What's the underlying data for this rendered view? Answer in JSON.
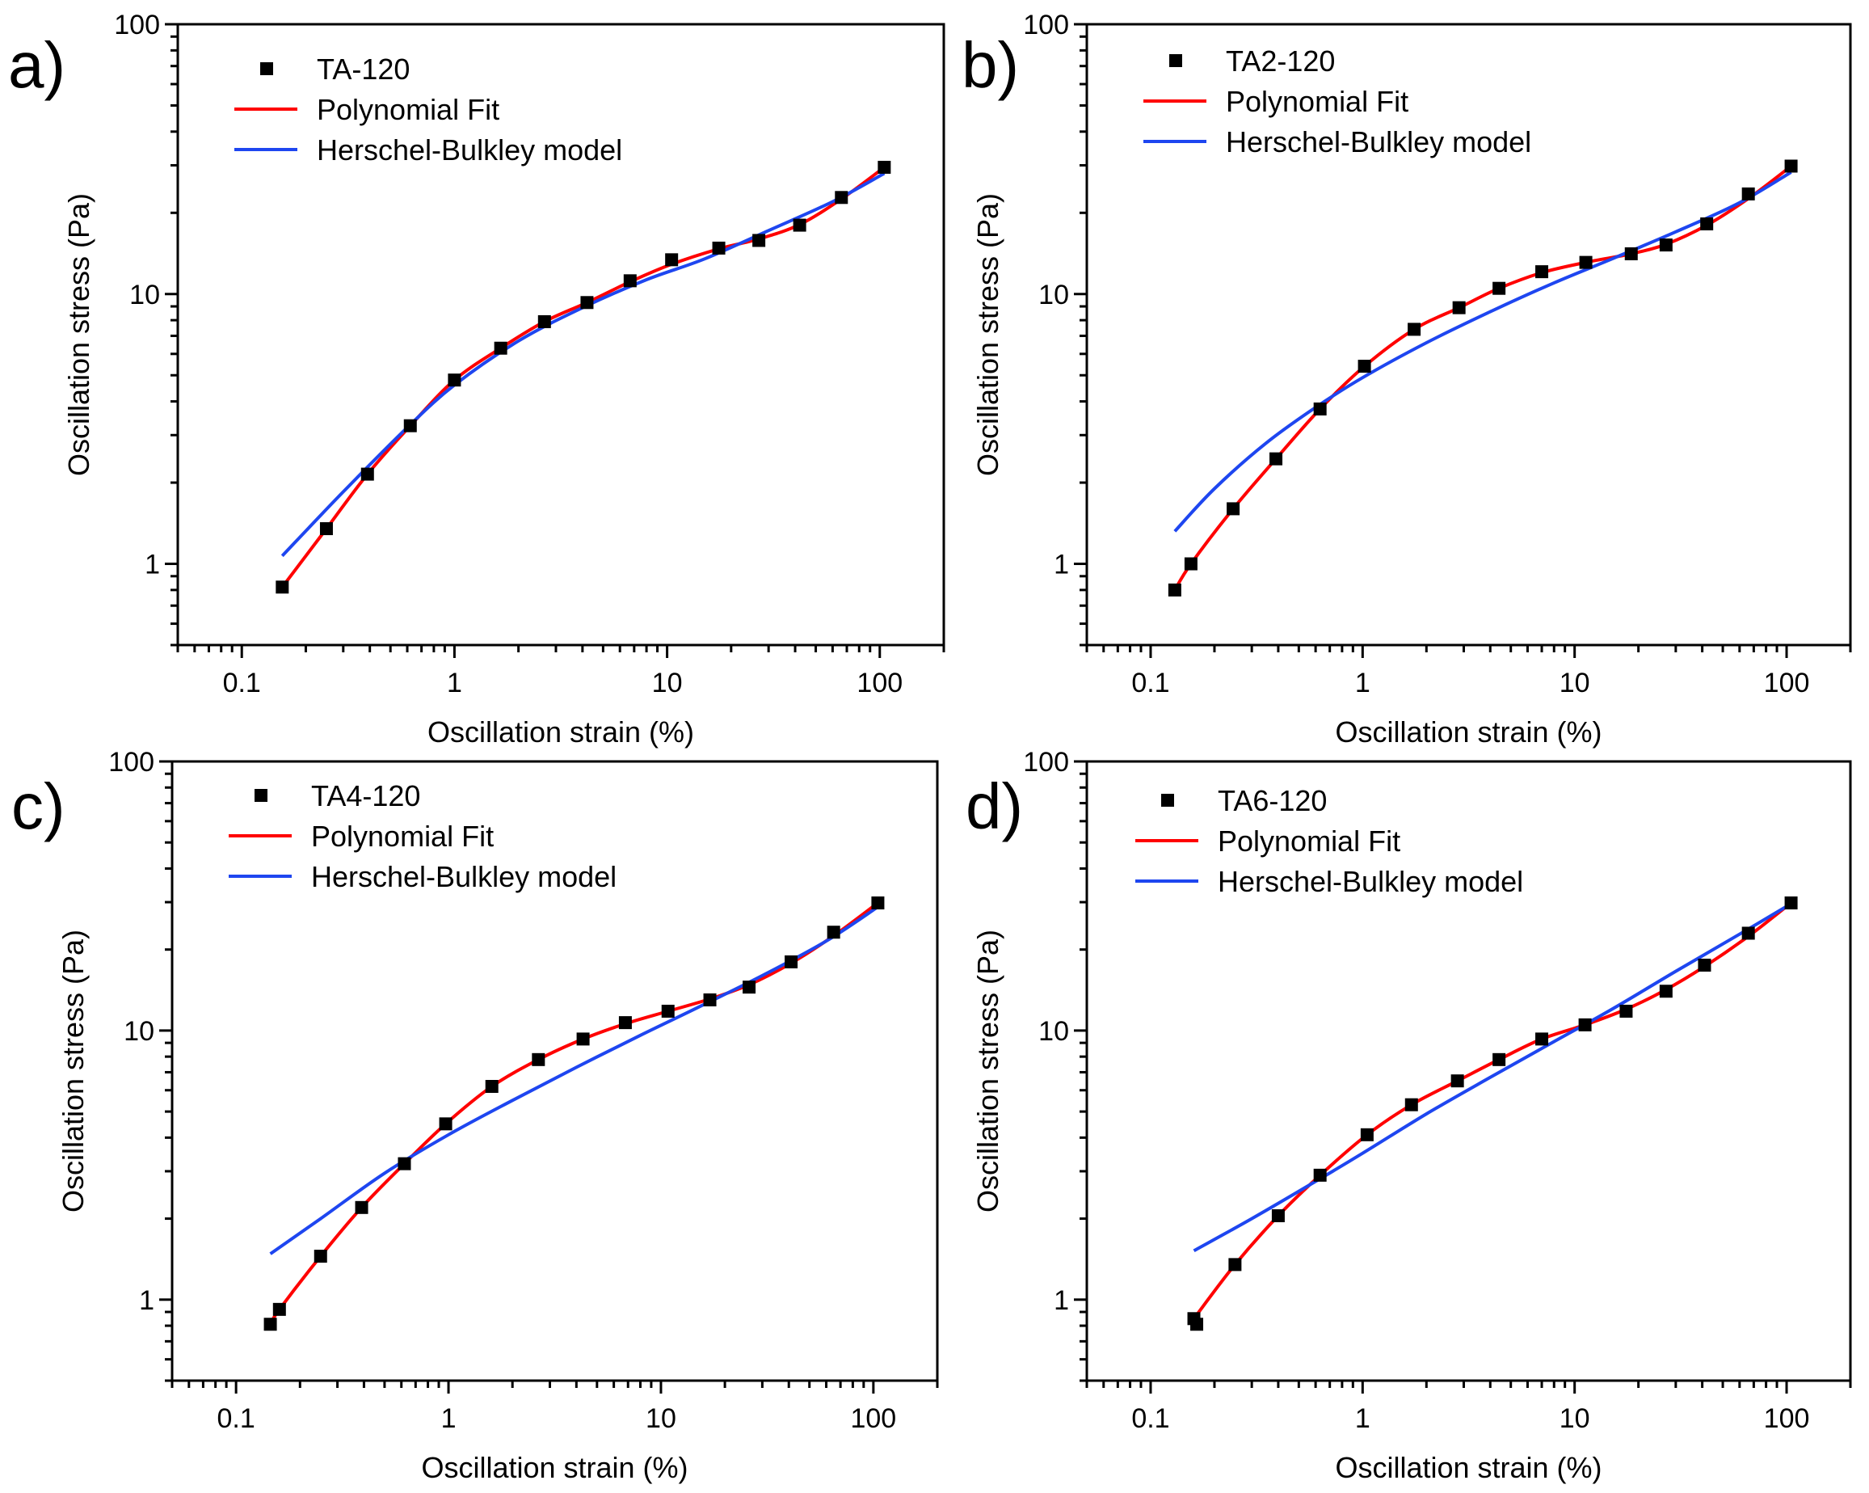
{
  "figure": {
    "xlabel": "Oscillation strain (%)",
    "ylabel": "Oscillation stress (Pa)"
  },
  "chart_data": [
    {
      "panel": "a)",
      "type": "scatter",
      "xscale": "log",
      "yscale": "log",
      "xlim": [
        0.05,
        200
      ],
      "ylim": [
        0.5,
        100
      ],
      "xticks": [
        "0.1",
        "1",
        "10",
        "100"
      ],
      "yticks": [
        "1",
        "10",
        "100"
      ],
      "xlabel": "Oscillation strain (%)",
      "ylabel": "Oscillation stress (Pa)",
      "legend_position": "top-left",
      "series": [
        {
          "name": "TA-120",
          "kind": "markers",
          "color": "#000000",
          "x": [
            0.155,
            0.25,
            0.39,
            0.62,
            1.0,
            1.65,
            2.65,
            4.2,
            6.7,
            10.5,
            17.5,
            27,
            42,
            66,
            105
          ],
          "y": [
            0.82,
            1.35,
            2.15,
            3.25,
            4.8,
            6.3,
            7.9,
            9.3,
            11.2,
            13.4,
            14.8,
            15.8,
            18.0,
            22.8,
            29.5
          ]
        },
        {
          "name": "Polynomial Fit",
          "kind": "line",
          "color": "#ff0000",
          "x": [
            0.155,
            0.25,
            0.39,
            0.62,
            1.0,
            1.65,
            2.65,
            4.2,
            6.7,
            10.5,
            17.5,
            27,
            42,
            66,
            105
          ],
          "y": [
            0.82,
            1.35,
            2.15,
            3.25,
            4.8,
            6.3,
            7.9,
            9.3,
            11.1,
            12.9,
            14.7,
            16.0,
            18.1,
            22.5,
            29.5
          ]
        },
        {
          "name": "Herschel-Bulkley model",
          "kind": "line",
          "color": "#1e46f0",
          "x": [
            0.155,
            0.3,
            0.6,
            1.0,
            2,
            4,
            8,
            15,
            30,
            60,
            105
          ],
          "y": [
            1.07,
            1.85,
            3.2,
            4.6,
            6.7,
            8.9,
            11.3,
            13.5,
            17.2,
            22.0,
            28.0
          ]
        }
      ]
    },
    {
      "panel": "b)",
      "type": "scatter",
      "xscale": "log",
      "yscale": "log",
      "xlim": [
        0.05,
        200
      ],
      "ylim": [
        0.5,
        100
      ],
      "xticks": [
        "0.1",
        "1",
        "10",
        "100"
      ],
      "yticks": [
        "1",
        "10",
        "100"
      ],
      "xlabel": "Oscillation strain (%)",
      "ylabel": "Oscillation stress (Pa)",
      "legend_position": "top-left",
      "series": [
        {
          "name": "TA2-120",
          "kind": "markers",
          "color": "#000000",
          "x": [
            0.13,
            0.155,
            0.245,
            0.39,
            0.63,
            1.02,
            1.75,
            2.85,
            4.4,
            7.0,
            11.3,
            18.5,
            27,
            42,
            66,
            105
          ],
          "y": [
            0.8,
            1.0,
            1.6,
            2.45,
            3.75,
            5.4,
            7.4,
            8.9,
            10.5,
            12.1,
            13.1,
            14.1,
            15.2,
            18.2,
            23.5,
            29.8
          ]
        },
        {
          "name": "Polynomial Fit",
          "kind": "line",
          "color": "#ff0000",
          "x": [
            0.13,
            0.155,
            0.245,
            0.39,
            0.63,
            1.02,
            1.75,
            2.85,
            4.4,
            7.0,
            11.3,
            18.5,
            27,
            42,
            66,
            105
          ],
          "y": [
            0.8,
            1.0,
            1.6,
            2.45,
            3.75,
            5.4,
            7.4,
            8.9,
            10.5,
            12.0,
            13.1,
            14.1,
            15.3,
            18.0,
            22.6,
            29.8
          ]
        },
        {
          "name": "Herschel-Bulkley model",
          "kind": "line",
          "color": "#1e46f0",
          "x": [
            0.13,
            0.2,
            0.35,
            0.6,
            1.0,
            2,
            4,
            8,
            15,
            30,
            60,
            105
          ],
          "y": [
            1.32,
            1.9,
            2.8,
            3.8,
            4.9,
            6.6,
            8.6,
            11.0,
            13.5,
            17.0,
            21.8,
            28.3
          ]
        }
      ]
    },
    {
      "panel": "c)",
      "type": "scatter",
      "xscale": "log",
      "yscale": "log",
      "xlim": [
        0.05,
        200
      ],
      "ylim": [
        0.5,
        100
      ],
      "xticks": [
        "0.1",
        "1",
        "10",
        "100"
      ],
      "yticks": [
        "1",
        "10",
        "100"
      ],
      "xlabel": "Oscillation strain (%)",
      "ylabel": "Oscillation stress (Pa)",
      "legend_position": "top-left",
      "series": [
        {
          "name": "TA4-120",
          "kind": "markers",
          "color": "#000000",
          "x": [
            0.145,
            0.16,
            0.25,
            0.39,
            0.62,
            0.97,
            1.6,
            2.65,
            4.3,
            6.8,
            10.8,
            17,
            26,
            41,
            65,
            105
          ],
          "y": [
            0.81,
            0.92,
            1.45,
            2.2,
            3.2,
            4.5,
            6.2,
            7.8,
            9.3,
            10.7,
            11.8,
            13.0,
            14.5,
            18.0,
            23.2,
            29.8
          ]
        },
        {
          "name": "Polynomial Fit",
          "kind": "line",
          "color": "#ff0000",
          "x": [
            0.145,
            0.16,
            0.25,
            0.39,
            0.62,
            0.97,
            1.6,
            2.65,
            4.3,
            6.8,
            10.8,
            17,
            26,
            41,
            65,
            105
          ],
          "y": [
            0.81,
            0.92,
            1.45,
            2.2,
            3.2,
            4.5,
            6.2,
            7.8,
            9.3,
            10.6,
            11.8,
            13.1,
            14.8,
            17.8,
            22.5,
            29.8
          ]
        },
        {
          "name": "Herschel-Bulkley model",
          "kind": "line",
          "color": "#1e46f0",
          "x": [
            0.145,
            0.25,
            0.5,
            1.0,
            2,
            4,
            8,
            15,
            30,
            60,
            105
          ],
          "y": [
            1.48,
            2.0,
            2.95,
            4.1,
            5.5,
            7.3,
            9.6,
            12.2,
            16.0,
            21.5,
            28.8
          ]
        }
      ]
    },
    {
      "panel": "d)",
      "type": "scatter",
      "xscale": "log",
      "yscale": "log",
      "xlim": [
        0.05,
        200
      ],
      "ylim": [
        0.5,
        100
      ],
      "xticks": [
        "0.1",
        "1",
        "10",
        "100"
      ],
      "yticks": [
        "1",
        "10",
        "100"
      ],
      "xlabel": "Oscillation strain (%)",
      "ylabel": "Oscillation stress (Pa)",
      "legend_position": "top-left",
      "series": [
        {
          "name": "TA6-120",
          "kind": "markers",
          "color": "#000000",
          "x": [
            0.16,
            0.165,
            0.25,
            0.4,
            0.63,
            1.05,
            1.7,
            2.8,
            4.4,
            7.0,
            11.2,
            17.5,
            27,
            41,
            66,
            105
          ],
          "y": [
            0.85,
            0.81,
            1.35,
            2.05,
            2.9,
            4.1,
            5.3,
            6.5,
            7.8,
            9.3,
            10.5,
            11.8,
            14.0,
            17.5,
            23.0,
            29.8
          ]
        },
        {
          "name": "Polynomial Fit",
          "kind": "line",
          "color": "#ff0000",
          "x": [
            0.16,
            0.25,
            0.4,
            0.63,
            1.05,
            1.7,
            2.8,
            4.4,
            7.0,
            11.2,
            17.5,
            27,
            41,
            66,
            105
          ],
          "y": [
            0.85,
            1.35,
            2.05,
            2.9,
            4.1,
            5.3,
            6.5,
            7.8,
            9.3,
            10.5,
            12.0,
            14.2,
            17.3,
            22.4,
            29.8
          ]
        },
        {
          "name": "Herschel-Bulkley model",
          "kind": "line",
          "color": "#1e46f0",
          "x": [
            0.16,
            0.3,
            0.6,
            1.0,
            2,
            4,
            8,
            15,
            30,
            60,
            105
          ],
          "y": [
            1.52,
            2.0,
            2.75,
            3.5,
            4.9,
            6.7,
            9.1,
            12.0,
            16.6,
            22.8,
            29.6
          ]
        }
      ]
    }
  ]
}
